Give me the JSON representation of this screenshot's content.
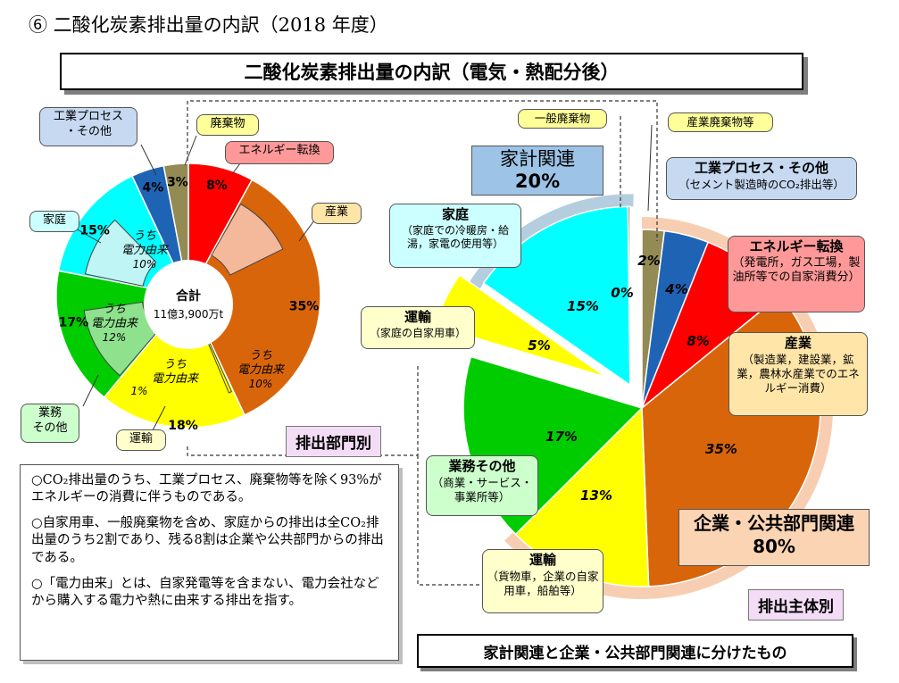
{
  "heading": "⑥ 二酸化炭素排出量の内訳（2018 年度）",
  "banner": "二酸化炭素排出量の内訳（電気・熱配分後）",
  "chart_data": [
    {
      "type": "pie",
      "center_label": "合計",
      "center_value": "11億3,900万t",
      "slices": [
        {
          "label": "エネルギー転換",
          "value": 8,
          "display": "8%",
          "color": "#ff0000"
        },
        {
          "label": "産業",
          "value": 35,
          "display": "35%",
          "color": "#d9650a"
        },
        {
          "label": "運輸",
          "value": 18,
          "display": "18%",
          "color": "#ffff00"
        },
        {
          "label": "業務その他",
          "value": 17,
          "display": "17%",
          "color": "#00cc00"
        },
        {
          "label": "家庭",
          "value": 15,
          "display": "15%",
          "color": "#00ffff"
        },
        {
          "label": "工業プロセス・その他",
          "value": 4,
          "display": "4%",
          "color": "#1f63b4"
        },
        {
          "label": "廃棄物",
          "value": 3,
          "display": "3%",
          "color": "#948a54"
        }
      ],
      "inner_slices": [
        {
          "label": "うち 電力由来",
          "value": 10,
          "display": "10%",
          "color": "#f4b99a"
        },
        {
          "label": "うち 電力由来",
          "value": 1,
          "display": "1%",
          "color": "#ffff00"
        },
        {
          "label": "うち 電力由来",
          "value": 12,
          "display": "12%",
          "color": "#8ee28e"
        },
        {
          "label": "うち 電力由来",
          "value": 10,
          "display": "10%",
          "color": "#bff5f5"
        }
      ]
    },
    {
      "type": "pie",
      "slices": [
        {
          "label": "工業プロセス・その他",
          "value": 4,
          "display": "4%",
          "color": "#1f63b4"
        },
        {
          "label": "エネルギー転換",
          "value": 8,
          "display": "8%",
          "color": "#ff0000"
        },
        {
          "label": "産業",
          "value": 35,
          "display": "35%",
          "color": "#d9650a"
        },
        {
          "label": "運輸",
          "value": 13,
          "display": "13%",
          "color": "#ffff00"
        },
        {
          "label": "業務その他",
          "value": 17,
          "display": "17%",
          "color": "#00cc00"
        },
        {
          "label": "運輸（家庭の自家用車）",
          "value": 5,
          "display": "5%",
          "color": "#ffff00"
        },
        {
          "label": "家庭",
          "value": 15,
          "display": "15%",
          "color": "#00ffff"
        },
        {
          "label": "一般廃棄物",
          "value": 0,
          "display": "0%",
          "color": "#948a54"
        },
        {
          "label": "産業廃棄物等",
          "value": 2,
          "display": "2%",
          "color": "#948a54"
        }
      ],
      "groups": [
        {
          "label": "家計関連",
          "value": "20%"
        },
        {
          "label": "企業・公共部門関連",
          "value": "80%"
        }
      ]
    }
  ],
  "left_labels": {
    "process": "工業プロセス\n・その他",
    "waste": "廃棄物",
    "energy": "エネルギー転換",
    "industry": "産業",
    "home": "家庭",
    "business": "業務\nその他",
    "transport": "運輸"
  },
  "tags": {
    "left": "排出部門別",
    "right": "排出主体別"
  },
  "right_labels": {
    "ippan": "一般廃棄物",
    "sangyo_haiki": "産業廃棄物等",
    "home_title": "家庭",
    "home_desc": "（家庭での冷暖房・給湯，家電の使用等）",
    "transport_home_title": "運輸",
    "transport_home_desc": "（家庭の自家用車）",
    "process_title": "工業プロセス・その他",
    "process_desc": "（セメント製造時のCO₂排出等）",
    "energy_title": "エネルギー転換",
    "energy_desc": "（発電所，ガス工場，製油所等での自家消費分）",
    "industry_title": "産業",
    "industry_desc": "（製造業，建設業，鉱業，農林水産業でのエネルギー消費）",
    "business_title": "業務その他",
    "business_desc": "（商業・サービス・事業所等）",
    "transport_title": "運輸",
    "transport_desc": "（貨物車，企業の自家用車，船舶等）",
    "household_group": "家計関連",
    "household_pct": "20%",
    "corporate_group": "企業・公共部門関連",
    "corporate_pct": "80%"
  },
  "notes": [
    "○CO₂排出量のうち、工業プロセス、廃棄物等を除く93%がエネルギーの消費に伴うものである。",
    "○自家用車、一般廃棄物を含め、家庭からの排出は全CO₂排出量のうち2割であり、残る8割は企業や公共部門からの排出である。",
    "○「電力由来」とは、自家発電等を含まない、電力会社などから購入する電力や熱に由来する排出を指す。"
  ],
  "bottom_note": "家計関連と企業・公共部門関連に分けたもの"
}
